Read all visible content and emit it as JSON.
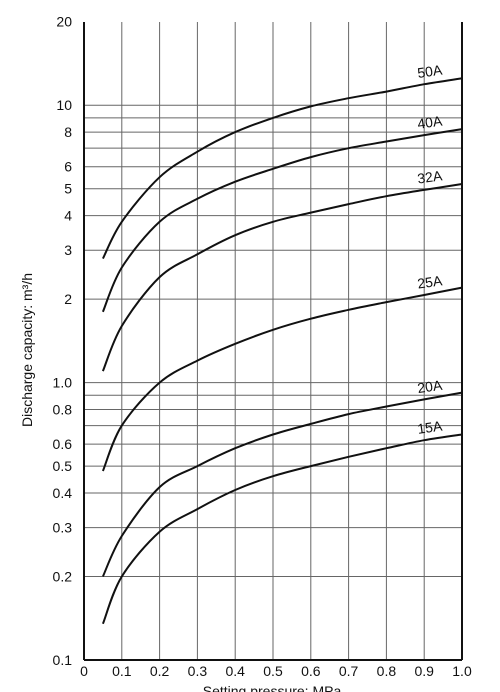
{
  "chart_data": {
    "type": "line",
    "title": "",
    "xlabel": "Setting pressure: MPa",
    "ylabel": "Discharge capacity: m³/h",
    "yscale": "log",
    "xlim": [
      0,
      1.0
    ],
    "ylim": [
      0.1,
      20
    ],
    "grid": true,
    "legend": "none (series labels placed at right end of each curve)",
    "x_ticks": [
      "0",
      "0.1",
      "0.2",
      "0.3",
      "0.4",
      "0.5",
      "0.6",
      "0.7",
      "0.8",
      "0.9",
      "1.0"
    ],
    "y_ticks": [
      "0.1",
      "0.2",
      "0.3",
      "0.4",
      "0.5",
      "0.6",
      "0.8",
      "1.0",
      "2",
      "3",
      "4",
      "5",
      "6",
      "8",
      "10",
      "20"
    ],
    "y_grid_values": [
      0.2,
      0.3,
      0.4,
      0.5,
      0.6,
      0.7,
      0.8,
      0.9,
      1.0,
      2,
      3,
      4,
      5,
      6,
      7,
      8,
      9,
      10
    ],
    "series": [
      {
        "name": "50A",
        "x": [
          0.05,
          0.1,
          0.2,
          0.3,
          0.4,
          0.5,
          0.6,
          0.7,
          0.8,
          0.9,
          1.0
        ],
        "y": [
          2.8,
          3.8,
          5.5,
          6.8,
          8.0,
          9.0,
          9.9,
          10.6,
          11.2,
          11.9,
          12.5
        ]
      },
      {
        "name": "40A",
        "x": [
          0.05,
          0.1,
          0.2,
          0.3,
          0.4,
          0.5,
          0.6,
          0.7,
          0.8,
          0.9,
          1.0
        ],
        "y": [
          1.8,
          2.6,
          3.8,
          4.6,
          5.3,
          5.9,
          6.5,
          7.0,
          7.4,
          7.8,
          8.2
        ]
      },
      {
        "name": "32A",
        "x": [
          0.05,
          0.1,
          0.2,
          0.3,
          0.4,
          0.5,
          0.6,
          0.7,
          0.8,
          0.9,
          1.0
        ],
        "y": [
          1.1,
          1.6,
          2.4,
          2.9,
          3.4,
          3.8,
          4.1,
          4.4,
          4.7,
          4.95,
          5.2
        ]
      },
      {
        "name": "25A",
        "x": [
          0.05,
          0.1,
          0.2,
          0.3,
          0.4,
          0.5,
          0.6,
          0.7,
          0.8,
          0.9,
          1.0
        ],
        "y": [
          0.48,
          0.7,
          1.0,
          1.2,
          1.38,
          1.55,
          1.7,
          1.83,
          1.95,
          2.07,
          2.2
        ]
      },
      {
        "name": "20A",
        "x": [
          0.05,
          0.1,
          0.2,
          0.3,
          0.4,
          0.5,
          0.6,
          0.7,
          0.8,
          0.9,
          1.0
        ],
        "y": [
          0.2,
          0.28,
          0.42,
          0.5,
          0.58,
          0.65,
          0.71,
          0.77,
          0.82,
          0.87,
          0.92
        ]
      },
      {
        "name": "15A",
        "x": [
          0.05,
          0.1,
          0.2,
          0.3,
          0.4,
          0.5,
          0.6,
          0.7,
          0.8,
          0.9,
          1.0
        ],
        "y": [
          0.135,
          0.2,
          0.29,
          0.35,
          0.41,
          0.46,
          0.5,
          0.54,
          0.58,
          0.62,
          0.65
        ]
      }
    ]
  }
}
